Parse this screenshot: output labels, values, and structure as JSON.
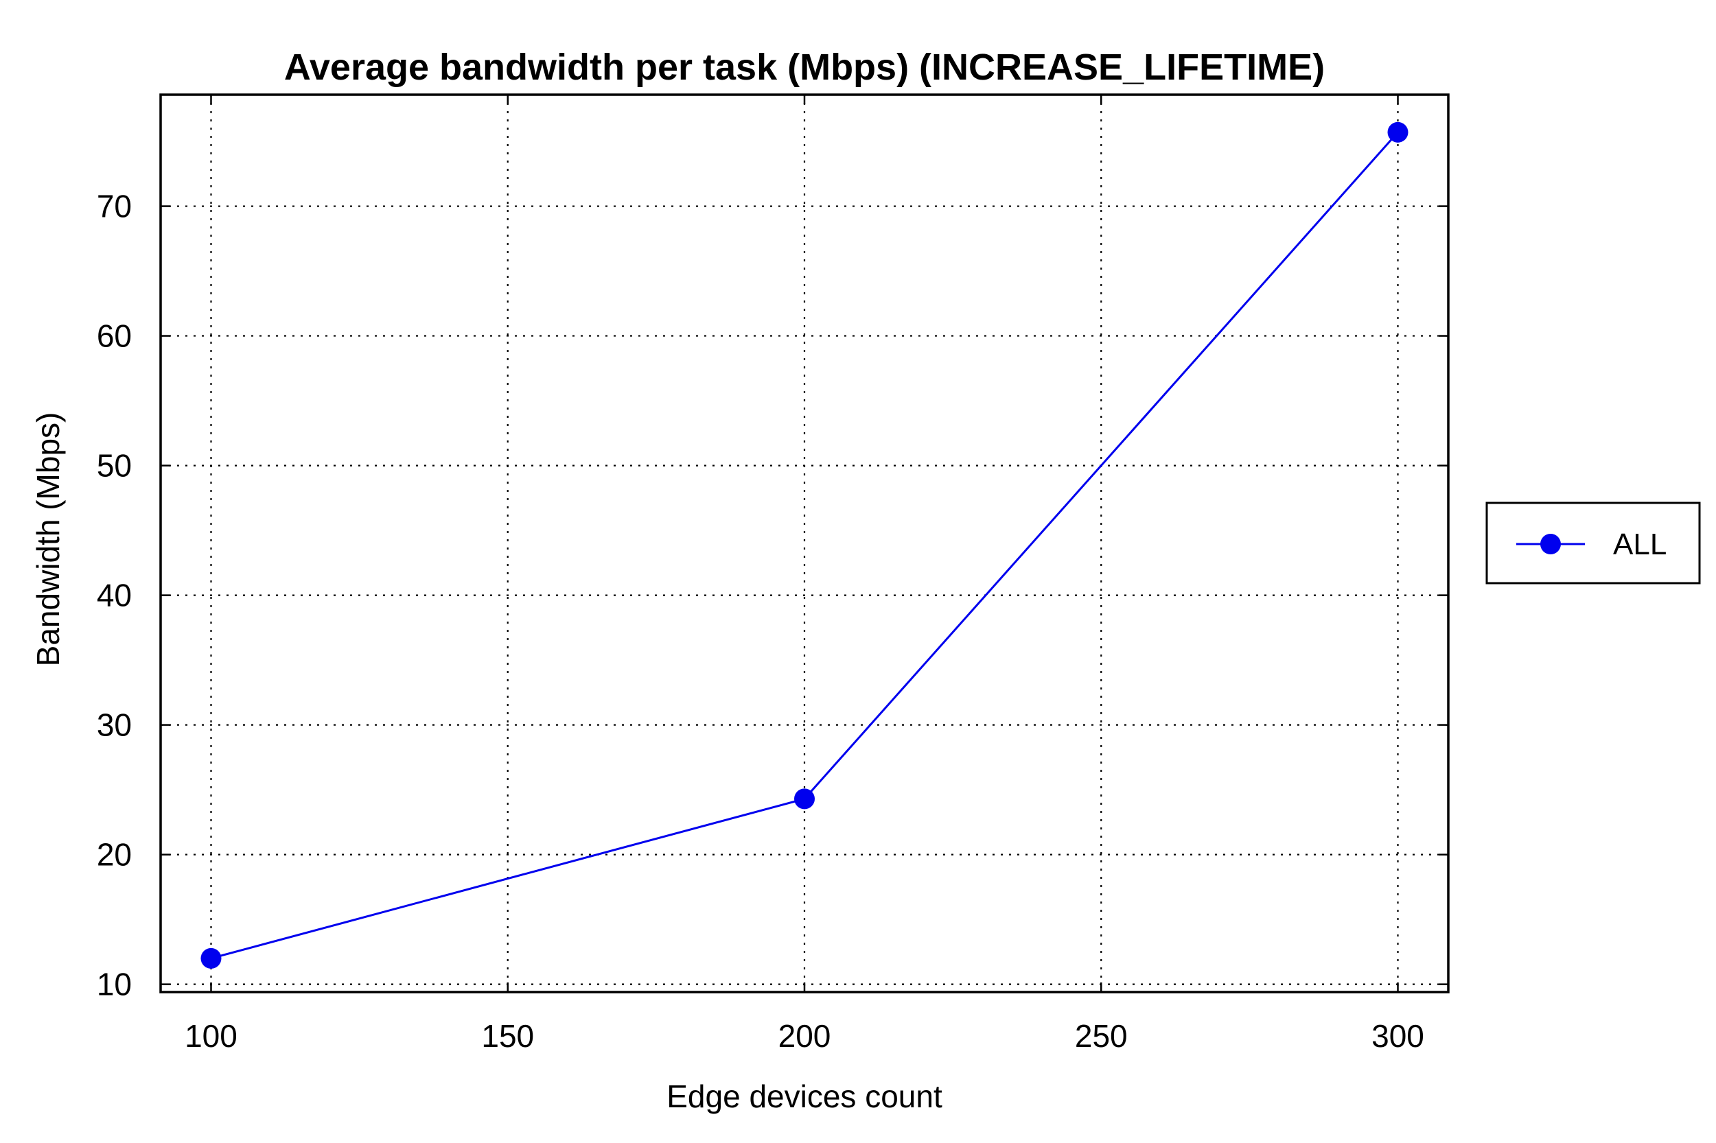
{
  "chart_data": {
    "type": "line",
    "title": "Average bandwidth per task (Mbps) (INCREASE_LIFETIME)",
    "xlabel": "Edge devices count",
    "ylabel": "Bandwidth (Mbps)",
    "xlim": [
      91.5,
      308.5
    ],
    "ylim": [
      9.4,
      78.6
    ],
    "xticks": [
      100,
      150,
      200,
      250,
      300
    ],
    "yticks": [
      10,
      20,
      30,
      40,
      50,
      60,
      70
    ],
    "grid": true,
    "legend_position": "right",
    "x": [
      100,
      200,
      300
    ],
    "series": [
      {
        "name": "ALL",
        "values": [
          12.0,
          24.3,
          75.7
        ],
        "color": "#0000ee",
        "marker": "circle"
      }
    ]
  }
}
